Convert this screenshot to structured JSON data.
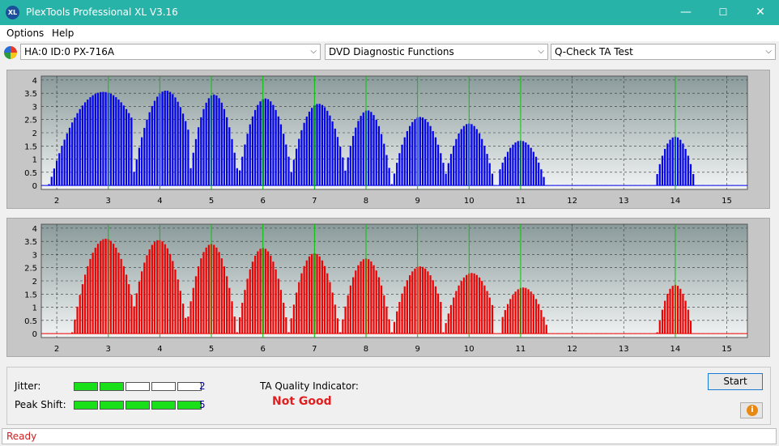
{
  "window": {
    "title": "PlexTools Professional XL V3.16",
    "icon_text": "XL",
    "minimize": "—",
    "maximize": "☐",
    "close": "✕"
  },
  "menu": {
    "items": [
      "Options",
      "Help"
    ]
  },
  "toolbar": {
    "drive": "HA:0 ID:0  PX-716A",
    "function": "DVD Diagnostic Functions",
    "test": "Q-Check TA Test",
    "arrow": "⌵"
  },
  "colors": {
    "top_series": "#0000ee",
    "bottom_series": "#ee0000",
    "markers": "#00cc00",
    "plot_bg_top": "#8a9a9a",
    "plot_bg_bottom": "#f2f4f4"
  },
  "chart_data": [
    {
      "type": "bar",
      "name": "top",
      "x_ticks": [
        "2",
        "3",
        "4",
        "5",
        "6",
        "7",
        "8",
        "9",
        "10",
        "11",
        "12",
        "13",
        "14",
        "15"
      ],
      "y_ticks": [
        "0",
        "0.5",
        "1",
        "1.5",
        "2",
        "2.5",
        "3",
        "3.5",
        "4"
      ],
      "xlim": [
        1.7,
        15.4
      ],
      "ylim": [
        -0.15,
        4.15
      ],
      "markers": [
        3,
        4,
        5,
        6,
        7,
        8,
        9,
        10,
        11,
        14
      ],
      "bumps": [
        {
          "center": 2.9,
          "peak": 3.55,
          "lo": 1.85,
          "hi": 3.45
        },
        {
          "center": 4.12,
          "peak": 3.6,
          "lo": 3.45,
          "hi": 4.55
        },
        {
          "center": 5.05,
          "peak": 3.45,
          "lo": 4.55,
          "hi": 5.5
        },
        {
          "center": 6.05,
          "peak": 3.3,
          "lo": 5.5,
          "hi": 6.5
        },
        {
          "center": 7.08,
          "peak": 3.1,
          "lo": 6.5,
          "hi": 7.55
        },
        {
          "center": 8.03,
          "peak": 2.85,
          "lo": 7.55,
          "hi": 8.5
        },
        {
          "center": 9.05,
          "peak": 2.6,
          "lo": 8.5,
          "hi": 9.55
        },
        {
          "center": 10.0,
          "peak": 2.35,
          "lo": 9.55,
          "hi": 10.5
        },
        {
          "center": 11.0,
          "peak": 1.7,
          "lo": 10.6,
          "hi": 11.5
        },
        {
          "center": 14.0,
          "peak": 1.85,
          "lo": 13.65,
          "hi": 14.4
        }
      ]
    },
    {
      "type": "bar",
      "name": "bottom",
      "x_ticks": [
        "2",
        "3",
        "4",
        "5",
        "6",
        "7",
        "8",
        "9",
        "10",
        "11",
        "12",
        "13",
        "14",
        "15"
      ],
      "y_ticks": [
        "0",
        "0.5",
        "1",
        "1.5",
        "2",
        "2.5",
        "3",
        "3.5",
        "4"
      ],
      "xlim": [
        1.7,
        15.4
      ],
      "ylim": [
        -0.15,
        4.15
      ],
      "markers": [
        3,
        4,
        5,
        6,
        7,
        8,
        9,
        10,
        11,
        14
      ],
      "bumps": [
        {
          "center": 2.95,
          "peak": 3.6,
          "lo": 2.3,
          "hi": 3.5
        },
        {
          "center": 3.98,
          "peak": 3.55,
          "lo": 3.5,
          "hi": 4.55
        },
        {
          "center": 5.0,
          "peak": 3.4,
          "lo": 4.55,
          "hi": 5.5
        },
        {
          "center": 6.0,
          "peak": 3.25,
          "lo": 5.5,
          "hi": 6.5
        },
        {
          "center": 7.0,
          "peak": 3.05,
          "lo": 6.5,
          "hi": 7.5
        },
        {
          "center": 8.0,
          "peak": 2.85,
          "lo": 7.5,
          "hi": 8.5
        },
        {
          "center": 9.05,
          "peak": 2.55,
          "lo": 8.5,
          "hi": 9.5
        },
        {
          "center": 10.05,
          "peak": 2.3,
          "lo": 9.5,
          "hi": 10.5
        },
        {
          "center": 11.05,
          "peak": 1.75,
          "lo": 10.65,
          "hi": 11.55
        },
        {
          "center": 14.0,
          "peak": 1.85,
          "lo": 13.65,
          "hi": 14.35
        }
      ]
    }
  ],
  "metrics": {
    "jitter_label": "Jitter:",
    "jitter_value": "2",
    "jitter_level": 2,
    "peak_label": "Peak Shift:",
    "peak_value": "5",
    "peak_level": 5,
    "led_count": 5
  },
  "ta": {
    "label": "TA Quality Indicator:",
    "value": "Not Good"
  },
  "buttons": {
    "start": "Start",
    "info": "i"
  },
  "status": {
    "text": "Ready"
  }
}
